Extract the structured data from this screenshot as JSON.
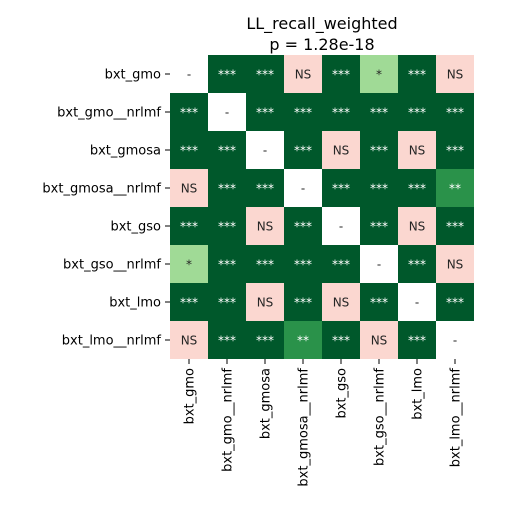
{
  "chart_data": {
    "type": "heatmap",
    "title": "LL_recall_weighted",
    "subtitle": "p = 1.28e-18",
    "xlabel": "",
    "ylabel": "",
    "row_labels": [
      "bxt_gmo",
      "bxt_gmo__nrlmf",
      "bxt_gmosa",
      "bxt_gmosa__nrlmf",
      "bxt_gso",
      "bxt_gso__nrlmf",
      "bxt_lmo",
      "bxt_lmo__nrlmf"
    ],
    "col_labels": [
      "bxt_gmo",
      "bxt_gmo__nrlmf",
      "bxt_gmosa",
      "bxt_gmosa__nrlmf",
      "bxt_gso",
      "bxt_gso__nrlmf",
      "bxt_lmo",
      "bxt_lmo__nrlmf"
    ],
    "cells": [
      [
        "-",
        "***",
        "***",
        "NS",
        "***",
        "*",
        "***",
        "NS"
      ],
      [
        "***",
        "-",
        "***",
        "***",
        "***",
        "***",
        "***",
        "***"
      ],
      [
        "***",
        "***",
        "-",
        "***",
        "NS",
        "***",
        "NS",
        "***"
      ],
      [
        "NS",
        "***",
        "***",
        "-",
        "***",
        "***",
        "***",
        "**"
      ],
      [
        "***",
        "***",
        "NS",
        "***",
        "-",
        "***",
        "NS",
        "***"
      ],
      [
        "*",
        "***",
        "***",
        "***",
        "***",
        "-",
        "***",
        "NS"
      ],
      [
        "***",
        "***",
        "NS",
        "***",
        "NS",
        "***",
        "-",
        "***"
      ],
      [
        "NS",
        "***",
        "***",
        "**",
        "***",
        "NS",
        "***",
        "-"
      ]
    ],
    "colors": {
      "***": "#00582b",
      "**": "#2a924a",
      "*": "#a0da96",
      "NS": "#fbd7d0",
      "-": "#ffffff"
    },
    "text_colors": {
      "***": "#ffffff",
      "**": "#ffffff",
      "*": "#262626",
      "NS": "#262626",
      "-": "#262626"
    },
    "legend": "none",
    "grid": false
  }
}
